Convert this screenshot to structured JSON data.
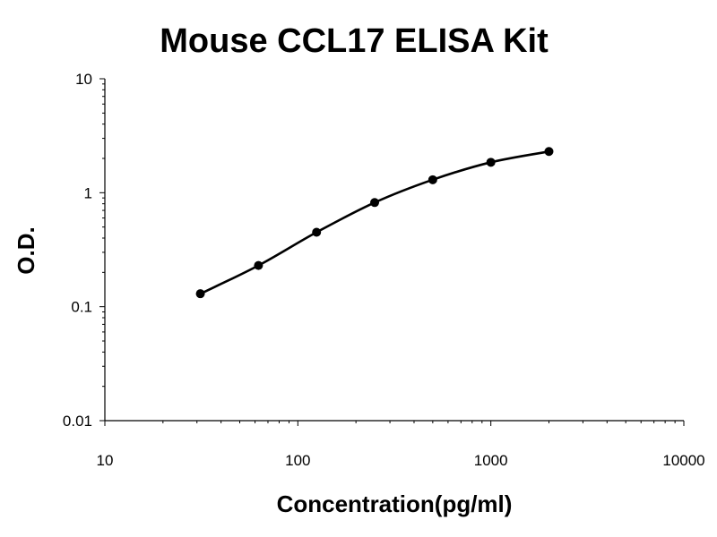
{
  "chart_data": {
    "type": "line",
    "title": "Mouse CCL17 ELISA Kit",
    "xlabel": "Concentration(pg/ml)",
    "ylabel": "O.D.",
    "x_scale": "log",
    "y_scale": "log",
    "xlim": [
      10,
      10000
    ],
    "ylim": [
      0.01,
      10
    ],
    "x_ticks": [
      "10",
      "100",
      "1000",
      "10000"
    ],
    "y_ticks": [
      "0.01",
      "0.1",
      "1",
      "10"
    ],
    "grid": false,
    "legend": "none",
    "series": [
      {
        "x": [
          31.25,
          62.5,
          125,
          250,
          500,
          1000,
          2000
        ],
        "y": [
          0.13,
          0.23,
          0.45,
          0.82,
          1.3,
          1.85,
          2.3
        ]
      }
    ]
  },
  "colors": {
    "line": "#000000",
    "marker": "#000000",
    "axis": "#000000"
  }
}
